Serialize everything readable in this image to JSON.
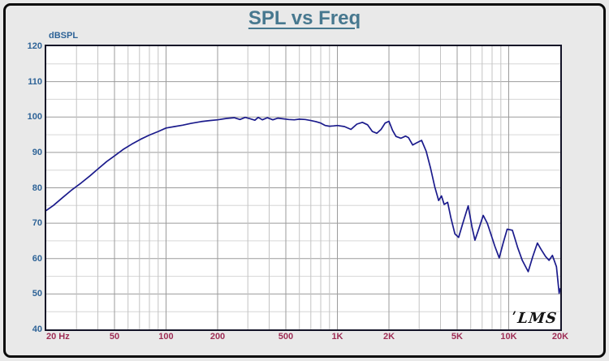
{
  "header": {
    "title": "SPL vs Freq",
    "title_color": "#47788f"
  },
  "watermark": "LMS",
  "colors": {
    "background": "#e9e9e9",
    "frame_border": "#0b0b0b",
    "plot_background": "#ffffff",
    "plot_border": "#131327",
    "grid_major": "#9b9b9b",
    "grid_minor": "#d6d6d6",
    "grid_minor_vertical": "#c3c3c3",
    "curve": "#1b1b8c",
    "y_label_color": "#2e6397",
    "x_label_color": "#9e2d55"
  },
  "chart_data": {
    "type": "line",
    "title": "SPL vs Freq",
    "ylabel": "dBSPL",
    "xlabel": "Hz",
    "x_scale": "log",
    "xlim": [
      20,
      20000
    ],
    "ylim": [
      40,
      120
    ],
    "grid": {
      "y_major_step": 10,
      "y_minor_step": 5,
      "x_lines": [
        30,
        40,
        50,
        60,
        70,
        80,
        90,
        100,
        200,
        300,
        400,
        500,
        600,
        700,
        800,
        900,
        1000,
        2000,
        3000,
        4000,
        5000,
        6000,
        7000,
        8000,
        9000,
        10000
      ],
      "x_major": [
        50,
        100,
        200,
        500,
        1000,
        2000,
        5000,
        10000
      ]
    },
    "y_ticks": [
      120,
      110,
      100,
      90,
      80,
      70,
      60,
      50,
      40
    ],
    "x_ticks": [
      {
        "f": 20,
        "label": "20 Hz",
        "align": "left"
      },
      {
        "f": 50,
        "label": "50"
      },
      {
        "f": 100,
        "label": "100"
      },
      {
        "f": 200,
        "label": "200"
      },
      {
        "f": 500,
        "label": "500"
      },
      {
        "f": 1000,
        "label": "1K"
      },
      {
        "f": 2000,
        "label": "2K"
      },
      {
        "f": 5000,
        "label": "5K"
      },
      {
        "f": 10000,
        "label": "10K"
      },
      {
        "f": 20000,
        "label": "20K"
      }
    ],
    "series": [
      {
        "name": "SPL",
        "color": "#1b1b8c",
        "points": [
          [
            20,
            73.6
          ],
          [
            22,
            75.0
          ],
          [
            25,
            77.3
          ],
          [
            28,
            79.3
          ],
          [
            32,
            81.4
          ],
          [
            36,
            83.4
          ],
          [
            40,
            85.3
          ],
          [
            45,
            87.4
          ],
          [
            50,
            89.0
          ],
          [
            56,
            90.8
          ],
          [
            63,
            92.3
          ],
          [
            71,
            93.7
          ],
          [
            80,
            94.9
          ],
          [
            90,
            95.9
          ],
          [
            100,
            96.9
          ],
          [
            112,
            97.3
          ],
          [
            125,
            97.7
          ],
          [
            140,
            98.2
          ],
          [
            160,
            98.7
          ],
          [
            180,
            99.0
          ],
          [
            200,
            99.2
          ],
          [
            225,
            99.6
          ],
          [
            250,
            99.8
          ],
          [
            270,
            99.3
          ],
          [
            290,
            99.9
          ],
          [
            310,
            99.5
          ],
          [
            330,
            99.1
          ],
          [
            345,
            99.9
          ],
          [
            365,
            99.2
          ],
          [
            390,
            99.8
          ],
          [
            420,
            99.2
          ],
          [
            450,
            99.7
          ],
          [
            480,
            99.5
          ],
          [
            520,
            99.3
          ],
          [
            560,
            99.2
          ],
          [
            600,
            99.4
          ],
          [
            650,
            99.3
          ],
          [
            700,
            99.0
          ],
          [
            750,
            98.7
          ],
          [
            800,
            98.3
          ],
          [
            850,
            97.6
          ],
          [
            900,
            97.4
          ],
          [
            950,
            97.5
          ],
          [
            1000,
            97.6
          ],
          [
            1100,
            97.3
          ],
          [
            1200,
            96.5
          ],
          [
            1300,
            98.0
          ],
          [
            1400,
            98.5
          ],
          [
            1500,
            97.8
          ],
          [
            1600,
            95.9
          ],
          [
            1700,
            95.4
          ],
          [
            1800,
            96.5
          ],
          [
            1900,
            98.3
          ],
          [
            2000,
            98.8
          ],
          [
            2100,
            96.2
          ],
          [
            2200,
            94.5
          ],
          [
            2350,
            94.0
          ],
          [
            2500,
            94.6
          ],
          [
            2600,
            94.2
          ],
          [
            2750,
            92.1
          ],
          [
            2900,
            92.7
          ],
          [
            3100,
            93.4
          ],
          [
            3300,
            90.3
          ],
          [
            3500,
            85.5
          ],
          [
            3700,
            80.3
          ],
          [
            3900,
            76.4
          ],
          [
            4050,
            77.7
          ],
          [
            4200,
            75.3
          ],
          [
            4400,
            75.9
          ],
          [
            4600,
            71.5
          ],
          [
            4850,
            67.0
          ],
          [
            5100,
            66.0
          ],
          [
            5400,
            70.0
          ],
          [
            5800,
            74.9
          ],
          [
            6100,
            69.0
          ],
          [
            6350,
            65.2
          ],
          [
            6700,
            68.5
          ],
          [
            7100,
            72.2
          ],
          [
            7500,
            70.0
          ],
          [
            7800,
            67.5
          ],
          [
            8300,
            63.5
          ],
          [
            8800,
            60.2
          ],
          [
            9300,
            64.5
          ],
          [
            9800,
            68.3
          ],
          [
            10500,
            68.0
          ],
          [
            11300,
            63.0
          ],
          [
            12000,
            59.5
          ],
          [
            13000,
            56.3
          ],
          [
            13800,
            60.5
          ],
          [
            14700,
            64.4
          ],
          [
            15500,
            62.5
          ],
          [
            16400,
            60.6
          ],
          [
            17200,
            59.5
          ],
          [
            18000,
            60.9
          ],
          [
            19000,
            57.7
          ],
          [
            19700,
            50.2
          ],
          [
            20000,
            51.5
          ]
        ]
      }
    ],
    "legend": false,
    "watermark": "LMS"
  }
}
